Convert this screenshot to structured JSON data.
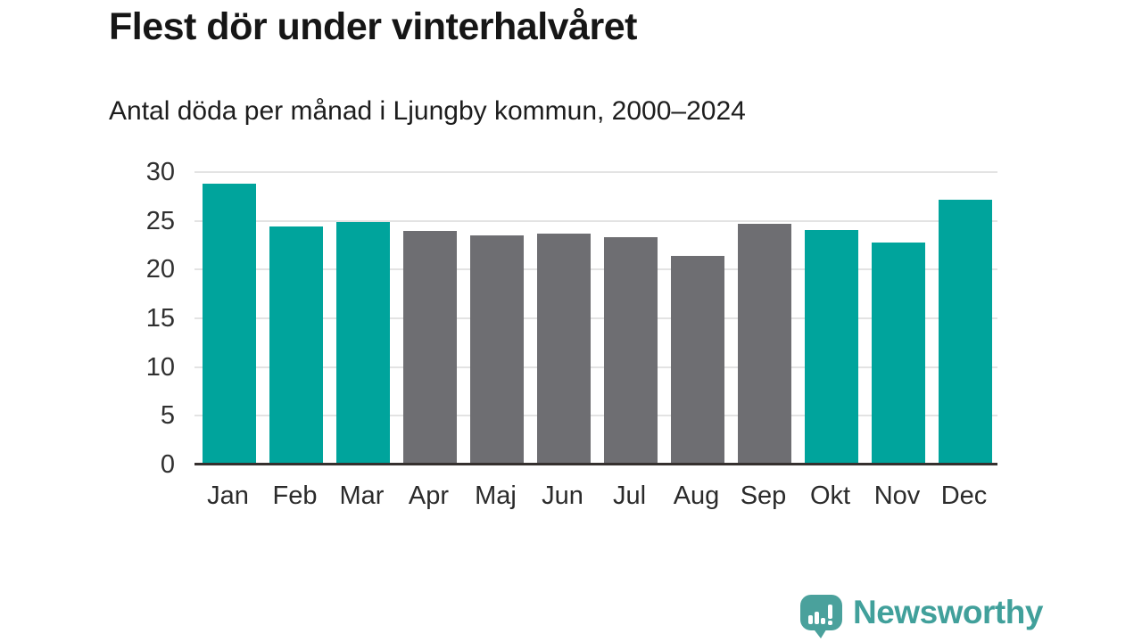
{
  "chart_data": {
    "type": "bar",
    "title": "Flest dör under vinterhalvåret",
    "subtitle": "Antal döda per månad i Ljungby kommun, 2000–2024",
    "categories": [
      "Jan",
      "Feb",
      "Mar",
      "Apr",
      "Maj",
      "Jun",
      "Jul",
      "Aug",
      "Sep",
      "Okt",
      "Nov",
      "Dec"
    ],
    "values": [
      28.8,
      24.4,
      24.9,
      24.0,
      23.5,
      23.7,
      23.3,
      21.4,
      24.7,
      24.1,
      22.8,
      27.2
    ],
    "bar_colors": [
      "#00a49c",
      "#00a49c",
      "#00a49c",
      "#6e6e72",
      "#6e6e72",
      "#6e6e72",
      "#6e6e72",
      "#6e6e72",
      "#6e6e72",
      "#00a49c",
      "#00a49c",
      "#00a49c"
    ],
    "highlight_color": "#00a49c",
    "base_color": "#6e6e72",
    "xlabel": "",
    "ylabel": "",
    "ylim": [
      0,
      30
    ],
    "yticks": [
      0,
      5,
      10,
      15,
      20,
      25,
      30
    ],
    "grid": true,
    "legend_position": "none"
  },
  "branding": {
    "logo_text": "Newsworthy",
    "logo_color": "#41a09b",
    "logo_icon": "bar-chart-speech-bubble-icon"
  }
}
